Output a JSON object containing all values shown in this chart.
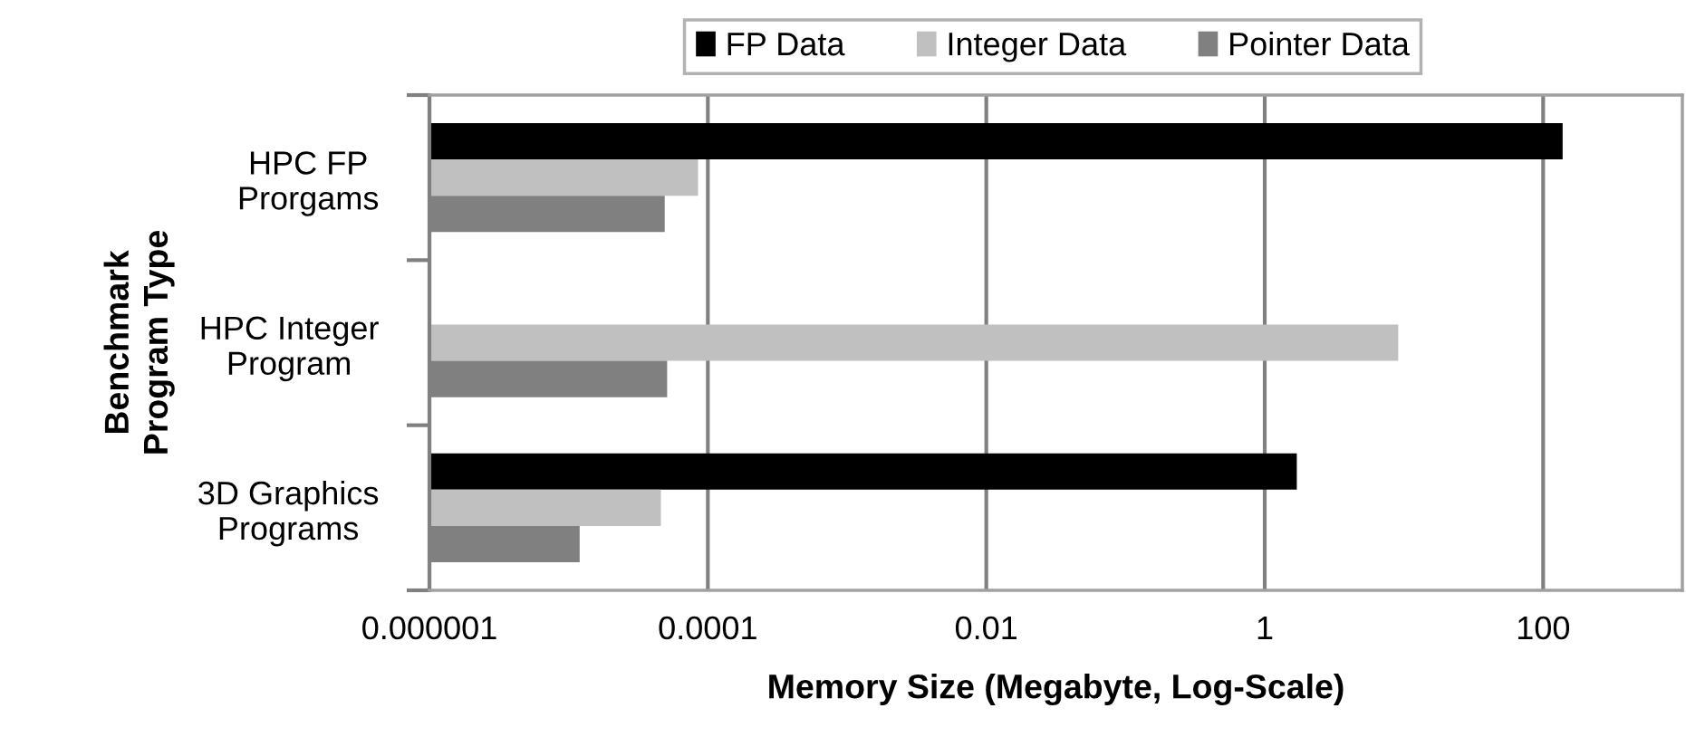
{
  "chart_data": {
    "type": "bar",
    "orientation": "horizontal",
    "xlabel": "Memory Size (Megabyte, Log-Scale)",
    "ylabel": "Benchmark\nProgram Type",
    "categories": [
      "HPC FP\nProrgams",
      "HPC Integer\nProgram",
      "3D Graphics\nPrograms"
    ],
    "series": [
      {
        "name": "FP Data",
        "color": "#000000",
        "values": [
          138,
          null,
          1.7
        ]
      },
      {
        "name": "Integer Data",
        "color": "#c0c0c0",
        "values": [
          8.5e-05,
          9.1,
          4.6e-05
        ]
      },
      {
        "name": "Pointer Data",
        "color": "#808080",
        "values": [
          4.9e-05,
          5.1e-05,
          1.2e-05
        ]
      }
    ],
    "log": "x",
    "xlim": [
      1e-06,
      1000
    ],
    "xticks": [
      {
        "value": 1e-06,
        "label": "0.000001"
      },
      {
        "value": 0.0001,
        "label": "0.0001"
      },
      {
        "value": 0.01,
        "label": "0.01"
      },
      1,
      100
    ],
    "grid": "x",
    "legend": "top"
  }
}
